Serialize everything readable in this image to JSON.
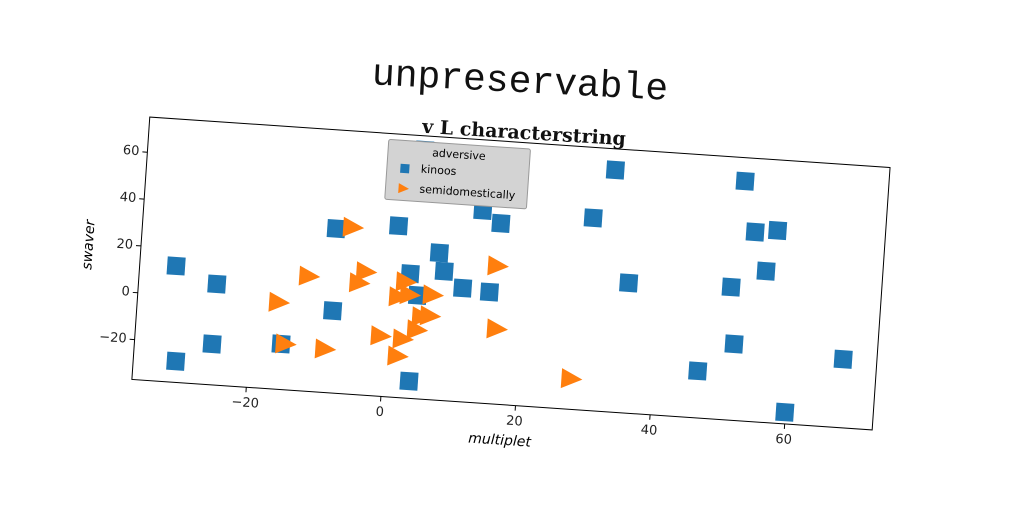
{
  "chart_data": {
    "type": "scatter",
    "title": "unpreservable",
    "subtitle": "v L characterstring",
    "x_label": "multiplet",
    "y_label": "swaver",
    "xlim": [
      -37,
      73
    ],
    "ylim": [
      -37,
      75
    ],
    "xticks": [
      {
        "value": -20,
        "label": "−20"
      },
      0,
      20,
      40,
      60
    ],
    "yticks": [
      {
        "value": -20,
        "label": "−20"
      },
      0,
      20,
      40,
      60
    ],
    "legend": {
      "title": "adversive",
      "position": "upper center"
    },
    "series": [
      {
        "name": "kinoos",
        "color": "#1f77b4",
        "marker": "square",
        "x": [
          -31.6,
          -30.7,
          -25.4,
          -25.5,
          -15.3,
          -8.3,
          -8,
          0.9,
          3.1,
          4,
          4.4,
          4,
          7.2,
          8.1,
          8.1,
          11,
          13.2,
          15,
          16,
          29.6,
          32.4,
          35.5,
          46.6,
          50.7,
          51.7,
          51.7,
          53.7,
          55.7,
          57,
          59.9,
          68
        ],
        "values": [
          12.5,
          -28,
          6,
          -19.6,
          -17.6,
          33,
          -2,
          36,
          16,
          -29.7,
          7,
          69,
          25.7,
          18,
          52,
          11.4,
          45,
          10.5,
          40,
          45,
          66,
          18.4,
          -17,
          19.6,
          -4.5,
          65,
          43.7,
          27.4,
          45,
          -32,
          -7.8
        ]
      },
      {
        "name": "semidomestically",
        "color": "#ff7f0e",
        "marker": "triangle-right",
        "x": [
          -16,
          -14.6,
          -11.8,
          -8.7,
          -5.8,
          -4.3,
          -3.4,
          -0.6,
          1.7,
          2.1,
          2.7,
          2.6,
          3.3,
          4.7,
          5.3,
          6.5,
          6.7,
          16,
          16.5,
          28
        ],
        "values": [
          0,
          -17.5,
          12,
          -18.5,
          34,
          10.6,
          15.5,
          -11.3,
          5.8,
          -19.4,
          -12,
          12.4,
          7,
          -7.7,
          -2,
          -1.4,
          7.6,
          21.8,
          -5,
          -24
        ]
      }
    ]
  }
}
